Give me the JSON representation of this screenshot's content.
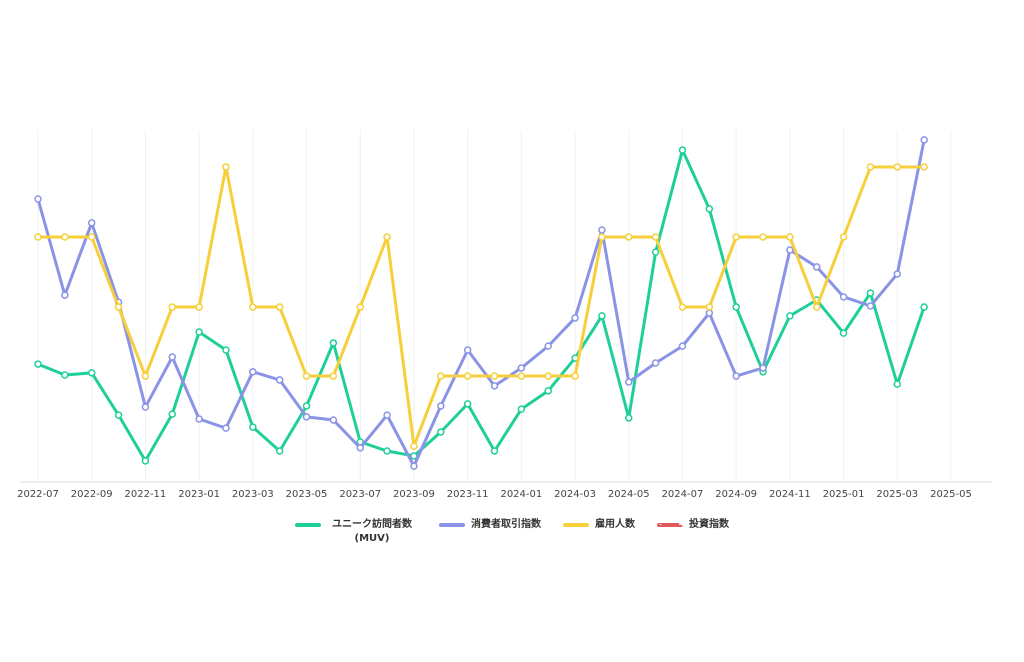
{
  "chart_data": {
    "type": "line",
    "x": [
      "2022-07",
      "2022-08",
      "2022-09",
      "2022-10",
      "2022-11",
      "2022-12",
      "2023-01",
      "2023-02",
      "2023-03",
      "2023-04",
      "2023-05",
      "2023-06",
      "2023-07",
      "2023-08",
      "2023-09",
      "2023-10",
      "2023-11",
      "2023-12",
      "2024-01",
      "2024-02",
      "2024-03",
      "2024-04",
      "2024-05",
      "2024-06",
      "2024-07",
      "2024-08",
      "2024-09",
      "2024-10",
      "2024-11",
      "2024-12",
      "2025-01",
      "2025-02",
      "2025-03",
      "2025-04"
    ],
    "series": [
      {
        "name": "ユニーク訪問者数 (MUV)",
        "color": "#1fcf9a",
        "values": [
          33.5,
          30.4,
          31.0,
          19.0,
          6.0,
          19.3,
          42.6,
          37.5,
          15.6,
          8.8,
          21.6,
          39.5,
          11.4,
          8.8,
          7.4,
          14.2,
          22.2,
          8.8,
          20.7,
          25.9,
          35.2,
          47.2,
          18.2,
          65.3,
          94.3,
          77.6,
          49.7,
          31.3,
          47.2,
          51.7,
          42.3,
          53.7,
          27.8,
          49.7
        ]
      },
      {
        "name": "消費者取引指数",
        "color": "#8a93e6",
        "values": [
          80.4,
          53.1,
          73.6,
          51.1,
          21.3,
          35.5,
          17.9,
          15.3,
          31.3,
          29.0,
          18.5,
          17.6,
          9.7,
          19.0,
          4.5,
          21.6,
          37.5,
          27.3,
          32.4,
          38.6,
          46.6,
          71.6,
          28.4,
          33.8,
          38.6,
          48.0,
          30.1,
          32.4,
          65.9,
          61.1,
          52.6,
          50.0,
          59.1,
          97.2
        ]
      },
      {
        "name": "雇用人数",
        "color": "#f7cf3a",
        "values": [
          69.6,
          69.6,
          69.6,
          49.7,
          30.1,
          49.7,
          49.7,
          89.5,
          49.7,
          49.7,
          30.1,
          30.1,
          49.7,
          69.6,
          10.2,
          30.1,
          30.1,
          30.1,
          30.1,
          30.1,
          30.1,
          69.6,
          69.6,
          69.6,
          49.7,
          49.7,
          69.6,
          69.6,
          69.6,
          49.7,
          69.6,
          89.5,
          89.5,
          89.5
        ]
      },
      {
        "name": "投資指数",
        "color": "#e05a5a",
        "dashed": true,
        "values": [
          null,
          null,
          null,
          null,
          null,
          null,
          null,
          null,
          null,
          null,
          null,
          null,
          null,
          null,
          null,
          null,
          null,
          null,
          null,
          null,
          null,
          null,
          null,
          null,
          null,
          null,
          null,
          null,
          null,
          null,
          null,
          null,
          null,
          null
        ]
      }
    ],
    "xlim": [
      "2022-07",
      "2025-05"
    ],
    "xticks": [
      "2022-07",
      "2022-09",
      "2022-11",
      "2023-01",
      "2023-03",
      "2023-05",
      "2023-07",
      "2023-09",
      "2023-11",
      "2024-01",
      "2024-03",
      "2024-05",
      "2024-07",
      "2024-09",
      "2024-11",
      "2025-01",
      "2025-03",
      "2025-05"
    ],
    "ylim": [
      0,
      100
    ],
    "grid": "x",
    "legend": "bottom"
  }
}
